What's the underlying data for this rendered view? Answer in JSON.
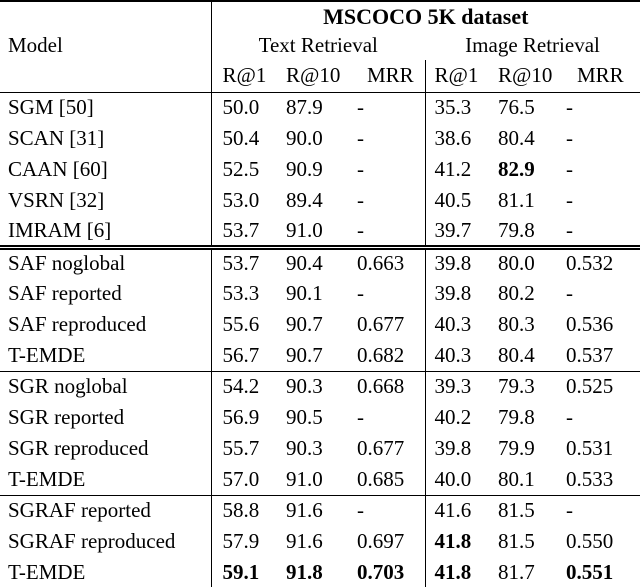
{
  "table": {
    "dataset_header": "MSCOCO 5K dataset",
    "model_column_header": "Model",
    "groups": [
      {
        "label": "Text Retrieval"
      },
      {
        "label": "Image Retrieval"
      }
    ],
    "metric_headers": [
      "R@1",
      "R@10",
      "MRR"
    ],
    "text_color": "#000000",
    "background_color": "#ffffff",
    "sections": [
      {
        "rows": [
          {
            "model": "SGM [50]",
            "values": [
              "50.0",
              "87.9",
              "-",
              "35.3",
              "76.5",
              "-"
            ],
            "bold": [
              false,
              false,
              false,
              false,
              false,
              false
            ]
          },
          {
            "model": "SCAN [31]",
            "values": [
              "50.4",
              "90.0",
              "-",
              "38.6",
              "80.4",
              "-"
            ],
            "bold": [
              false,
              false,
              false,
              false,
              false,
              false
            ]
          },
          {
            "model": "CAAN [60]",
            "values": [
              "52.5",
              "90.9",
              "-",
              "41.2",
              "82.9",
              "-"
            ],
            "bold": [
              false,
              false,
              false,
              false,
              true,
              false
            ]
          },
          {
            "model": "VSRN [32]",
            "values": [
              "53.0",
              "89.4",
              "-",
              "40.5",
              "81.1",
              "-"
            ],
            "bold": [
              false,
              false,
              false,
              false,
              false,
              false
            ]
          },
          {
            "model": "IMRAM [6]",
            "values": [
              "53.7",
              "91.0",
              "-",
              "39.7",
              "79.8",
              "-"
            ],
            "bold": [
              false,
              false,
              false,
              false,
              false,
              false
            ]
          }
        ]
      },
      {
        "rows": [
          {
            "model": "SAF noglobal",
            "values": [
              "53.7",
              "90.4",
              "0.663",
              "39.8",
              "80.0",
              "0.532"
            ],
            "bold": [
              false,
              false,
              false,
              false,
              false,
              false
            ]
          },
          {
            "model": "SAF reported",
            "values": [
              "53.3",
              "90.1",
              "-",
              "39.8",
              "80.2",
              "-"
            ],
            "bold": [
              false,
              false,
              false,
              false,
              false,
              false
            ]
          },
          {
            "model": "SAF reproduced",
            "values": [
              "55.6",
              "90.7",
              "0.677",
              "40.3",
              "80.3",
              "0.536"
            ],
            "bold": [
              false,
              false,
              false,
              false,
              false,
              false
            ]
          },
          {
            "model": "T-EMDE",
            "values": [
              "56.7",
              "90.7",
              "0.682",
              "40.3",
              "80.4",
              "0.537"
            ],
            "bold": [
              false,
              false,
              false,
              false,
              false,
              false
            ]
          }
        ]
      },
      {
        "rows": [
          {
            "model": "SGR noglobal",
            "values": [
              "54.2",
              "90.3",
              "0.668",
              "39.3",
              "79.3",
              "0.525"
            ],
            "bold": [
              false,
              false,
              false,
              false,
              false,
              false
            ]
          },
          {
            "model": "SGR reported",
            "values": [
              "56.9",
              "90.5",
              "-",
              "40.2",
              "79.8",
              "-"
            ],
            "bold": [
              false,
              false,
              false,
              false,
              false,
              false
            ]
          },
          {
            "model": "SGR reproduced",
            "values": [
              "55.7",
              "90.3",
              "0.677",
              "39.8",
              "79.9",
              "0.531"
            ],
            "bold": [
              false,
              false,
              false,
              false,
              false,
              false
            ]
          },
          {
            "model": "T-EMDE",
            "values": [
              "57.0",
              "91.0",
              "0.685",
              "40.0",
              "80.1",
              "0.533"
            ],
            "bold": [
              false,
              false,
              false,
              false,
              false,
              false
            ]
          }
        ]
      },
      {
        "rows": [
          {
            "model": "SGRAF reported",
            "values": [
              "58.8",
              "91.6",
              "-",
              "41.6",
              "81.5",
              "-"
            ],
            "bold": [
              false,
              false,
              false,
              false,
              false,
              false
            ]
          },
          {
            "model": "SGRAF reproduced",
            "values": [
              "57.9",
              "91.6",
              "0.697",
              "41.8",
              "81.5",
              "0.550"
            ],
            "bold": [
              false,
              false,
              false,
              true,
              false,
              false
            ]
          },
          {
            "model": "T-EMDE",
            "values": [
              "59.1",
              "91.8",
              "0.703",
              "41.8",
              "81.7",
              "0.551"
            ],
            "bold": [
              true,
              true,
              true,
              true,
              false,
              true
            ]
          }
        ]
      }
    ]
  }
}
